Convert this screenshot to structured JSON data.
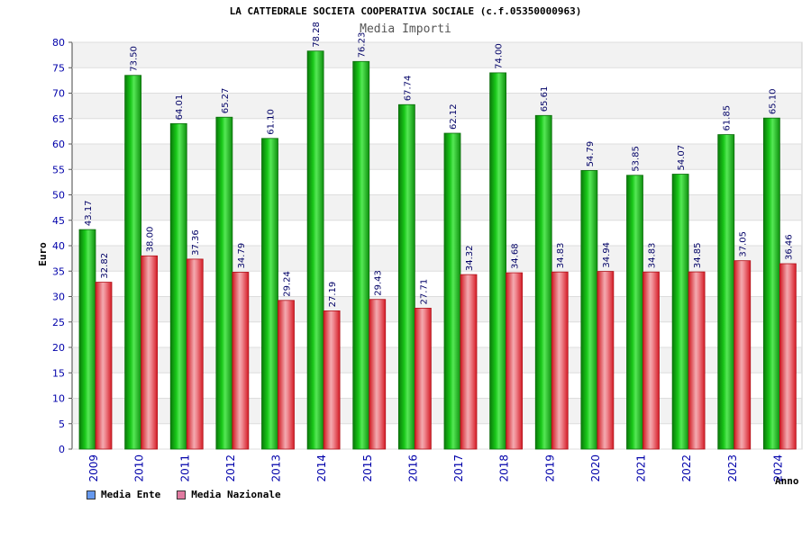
{
  "title": "LA CATTEDRALE SOCIETA COOPERATIVA SOCIALE (c.f.05350000963)",
  "subtitle": "Media Importi",
  "ylabel": "Euro",
  "xlabel": "Anno",
  "colors": {
    "series1": "#1fbf1f",
    "series2": "#e3323a",
    "legend1": "#6699ee",
    "legend2": "#e07aa0",
    "grid_band": "#f2f2f2",
    "axis_text": "#0000aa",
    "label_text": "#000066"
  },
  "chart_data": {
    "type": "bar",
    "categories": [
      "2009",
      "2010",
      "2011",
      "2012",
      "2013",
      "2014",
      "2015",
      "2016",
      "2017",
      "2018",
      "2019",
      "2020",
      "2021",
      "2022",
      "2023",
      "2024"
    ],
    "series": [
      {
        "name": "Media Ente",
        "values": [
          43.17,
          73.5,
          64.01,
          65.27,
          61.1,
          78.28,
          76.23,
          67.74,
          62.12,
          74.0,
          65.61,
          54.79,
          53.85,
          54.07,
          61.85,
          65.1
        ]
      },
      {
        "name": "Media Nazionale",
        "values": [
          32.82,
          38.0,
          37.36,
          34.79,
          29.24,
          27.19,
          29.43,
          27.71,
          34.32,
          34.68,
          34.83,
          34.94,
          34.83,
          34.85,
          37.05,
          36.46
        ]
      }
    ],
    "value_labels": {
      "series1": [
        "43.17",
        "73.50",
        "64.01",
        "65.27",
        "61.10",
        "78.28",
        "76.23",
        "67.74",
        "62.12",
        "74.00",
        "65.61",
        "54.79",
        "53.85",
        "54.07",
        "61.85",
        "65.10"
      ],
      "series2": [
        "32.82",
        "38.00",
        "37.36",
        "34.79",
        "29.24",
        "27.19",
        "29.43",
        "27.71",
        "34.32",
        "34.68",
        "34.83",
        "34.94",
        "34.83",
        "34.85",
        "37.05",
        "36.46"
      ]
    },
    "yticks": [
      "0",
      "5",
      "10",
      "15",
      "20",
      "25",
      "30",
      "35",
      "40",
      "45",
      "50",
      "55",
      "60",
      "65",
      "70",
      "75",
      "80"
    ],
    "ylim": [
      0,
      80
    ],
    "grid": true,
    "legend_position": "bottom-left"
  }
}
